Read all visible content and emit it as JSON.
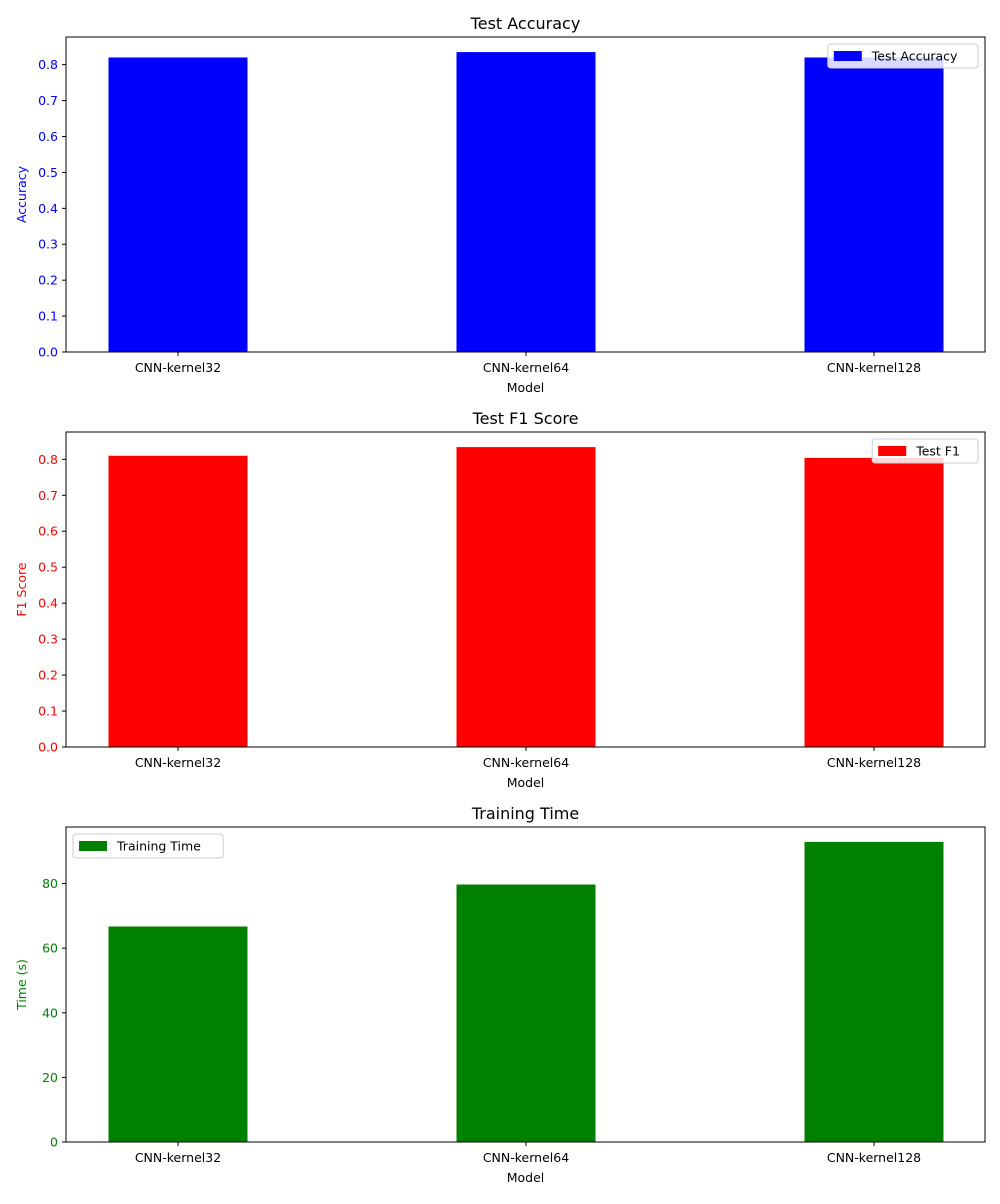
{
  "chart_data": [
    {
      "type": "bar",
      "title": "Test Accuracy",
      "xlabel": "Model",
      "ylabel": "Accuracy",
      "categories": [
        "CNN-kernel32",
        "CNN-kernel64",
        "CNN-kernel128"
      ],
      "series": [
        {
          "name": "Test Accuracy",
          "values": [
            0.82,
            0.835,
            0.82
          ]
        }
      ],
      "ylim": [
        0,
        0.877
      ],
      "yticks": [
        "0.0",
        "0.1",
        "0.2",
        "0.3",
        "0.4",
        "0.5",
        "0.6",
        "0.7",
        "0.8"
      ],
      "color": "#0000ff",
      "legend_position": "top-right",
      "grid": false
    },
    {
      "type": "bar",
      "title": "Test F1 Score",
      "xlabel": "Model",
      "ylabel": "F1 Score",
      "categories": [
        "CNN-kernel32",
        "CNN-kernel64",
        "CNN-kernel128"
      ],
      "series": [
        {
          "name": "Test F1",
          "values": [
            0.81,
            0.834,
            0.804
          ]
        }
      ],
      "ylim": [
        0,
        0.876
      ],
      "yticks": [
        "0.0",
        "0.1",
        "0.2",
        "0.3",
        "0.4",
        "0.5",
        "0.6",
        "0.7",
        "0.8"
      ],
      "color": "#ff0000",
      "legend_position": "top-right",
      "grid": false
    },
    {
      "type": "bar",
      "title": "Training Time",
      "xlabel": "Model",
      "ylabel": "Time (s)",
      "categories": [
        "CNN-kernel32",
        "CNN-kernel64",
        "CNN-kernel128"
      ],
      "series": [
        {
          "name": "Training Time",
          "values": [
            66.7,
            79.7,
            92.9
          ]
        }
      ],
      "ylim": [
        0,
        97.5
      ],
      "yticks": [
        "0",
        "20",
        "40",
        "60",
        "80"
      ],
      "color": "#008000",
      "legend_position": "top-left",
      "grid": false
    }
  ]
}
